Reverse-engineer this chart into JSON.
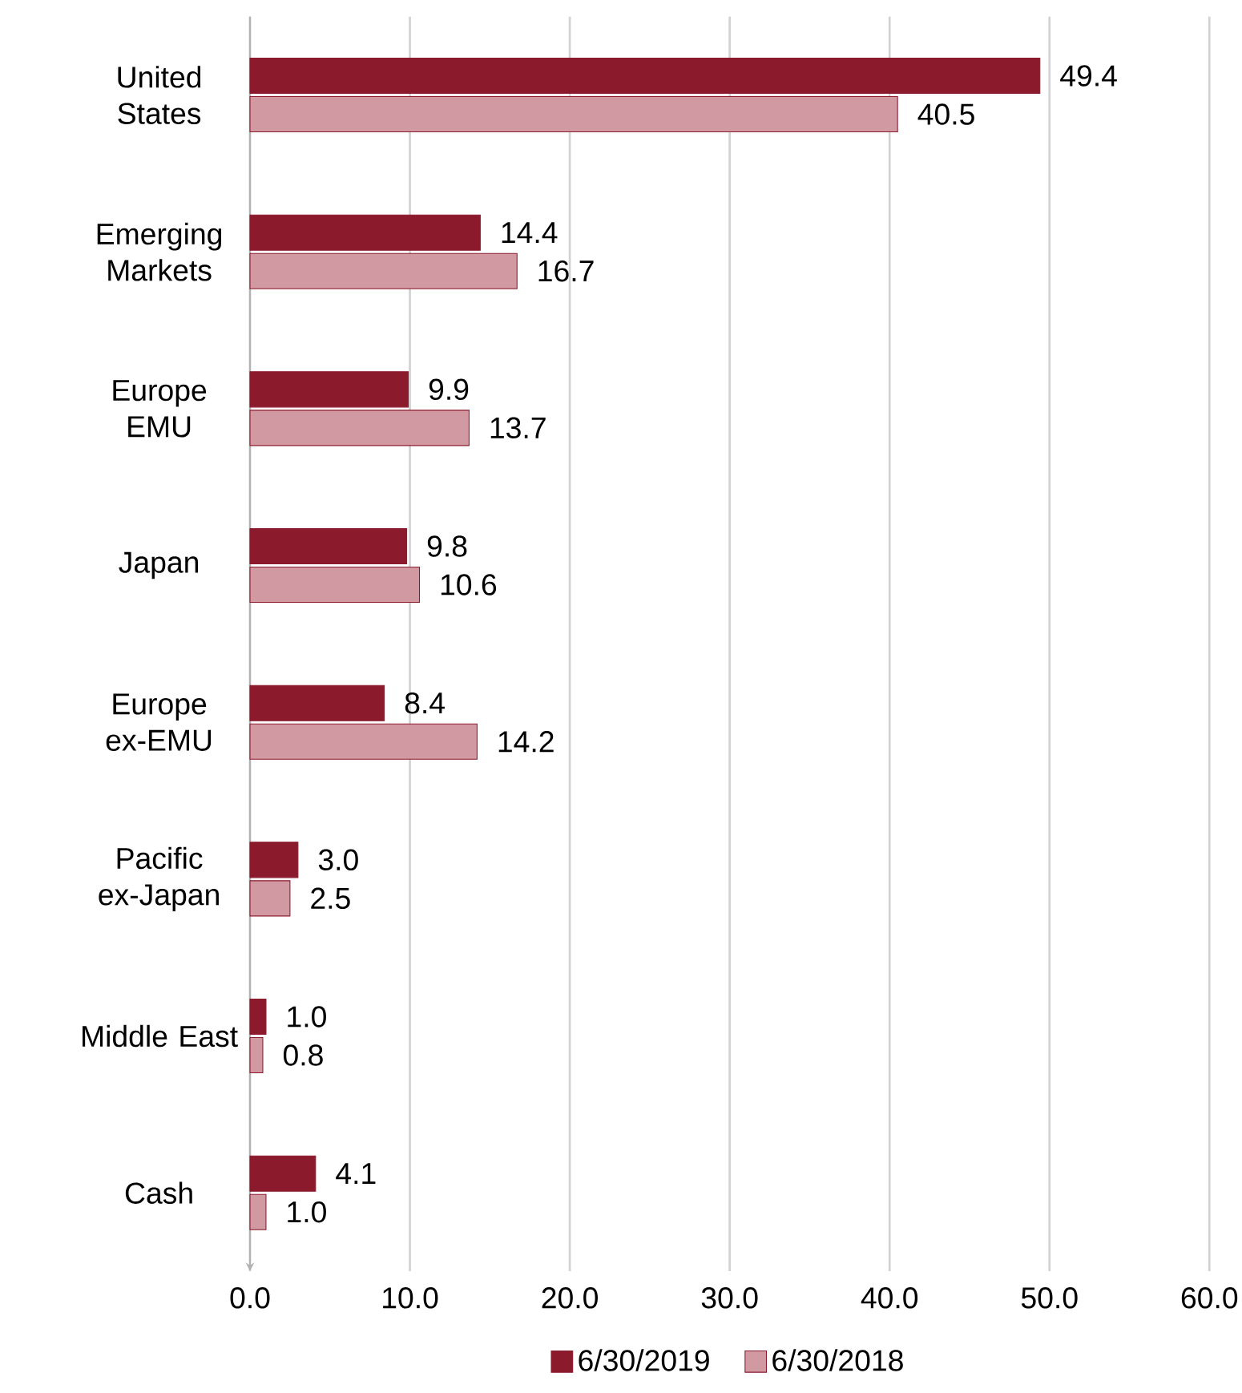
{
  "chart_data": {
    "type": "bar",
    "orientation": "horizontal",
    "categories": [
      "United States",
      "Emerging Markets",
      "Europe EMU",
      "Japan",
      "Europe ex-EMU",
      "Pacific ex-Japan",
      "Middle East",
      "Cash"
    ],
    "series": [
      {
        "name": "6/30/2019",
        "color": "#8b1a2c",
        "values": [
          49.4,
          14.4,
          9.9,
          9.8,
          8.4,
          3.0,
          1.0,
          4.1
        ],
        "value_labels": [
          "49.4",
          "14.4",
          "9.9",
          "9.8",
          "8.4",
          "3.0",
          "1.0",
          "4.1"
        ]
      },
      {
        "name": "6/30/2018",
        "color": "#d19aa3",
        "values": [
          40.5,
          16.7,
          13.7,
          10.6,
          14.2,
          2.5,
          0.8,
          1.0
        ],
        "value_labels": [
          "40.5",
          "16.7",
          "13.7",
          "10.6",
          "14.2",
          "2.5",
          "0.8",
          "1.0"
        ]
      }
    ],
    "xlim": [
      0,
      60
    ],
    "xticks": [
      {
        "value": 0,
        "label": "0.0"
      },
      {
        "value": 10,
        "label": "10.0"
      },
      {
        "value": 20,
        "label": "20.0"
      },
      {
        "value": 30,
        "label": "30.0"
      },
      {
        "value": 40,
        "label": "40.0"
      },
      {
        "value": 50,
        "label": "50.0"
      },
      {
        "value": 60,
        "label": "60.0"
      }
    ],
    "grid": "x",
    "legend": "bottom"
  }
}
